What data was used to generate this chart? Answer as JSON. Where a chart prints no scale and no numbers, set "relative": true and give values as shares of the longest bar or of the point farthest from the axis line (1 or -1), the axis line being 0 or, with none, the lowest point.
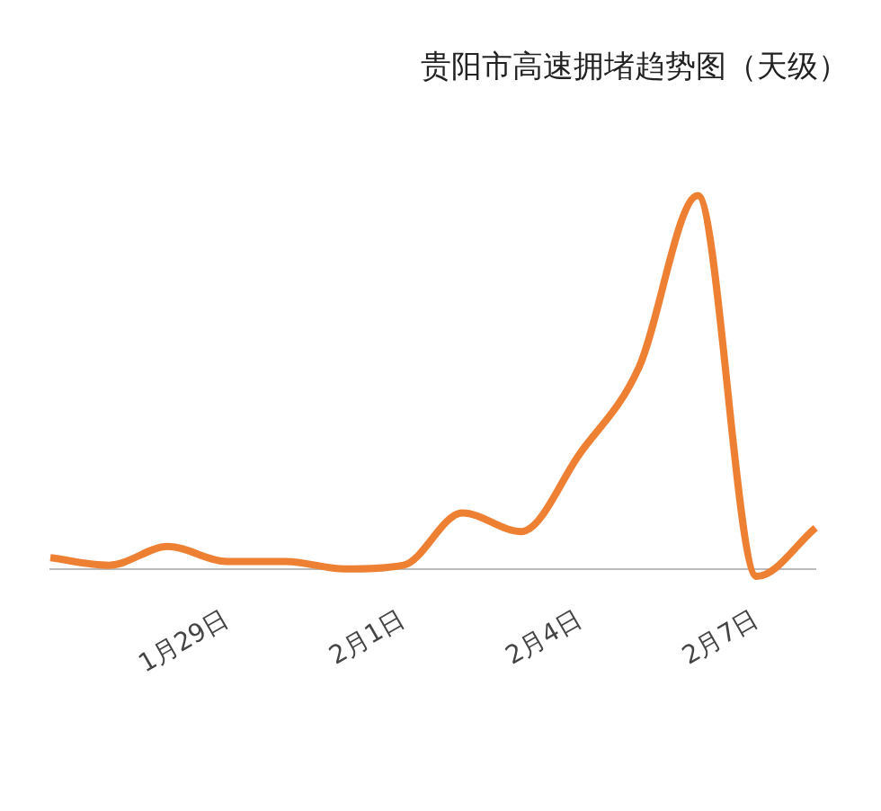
{
  "chart_data": {
    "type": "line",
    "title": "贵阳市高速拥堵趋势图（天级）",
    "relative": true,
    "grid": false,
    "legend": false,
    "marker": "none",
    "line_style": "solid",
    "categories": [
      null,
      null,
      null,
      "1月29日",
      null,
      null,
      "2月1日",
      null,
      null,
      "2月4日",
      null,
      null,
      "2月7日",
      null
    ],
    "series": [
      {
        "color": "#ee8033",
        "values": [
          0.03,
          0.01,
          0.06,
          0.02,
          0.02,
          0.0,
          0.01,
          0.15,
          0.1,
          0.31,
          0.54,
          1,
          -0.02,
          0.11
        ]
      }
    ]
  }
}
